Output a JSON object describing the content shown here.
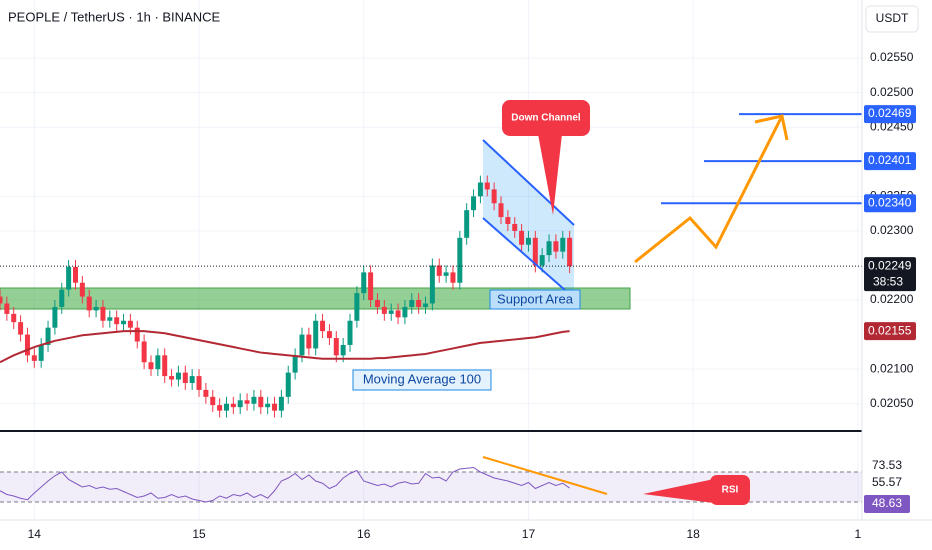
{
  "chart_data": {
    "type": "candlestick",
    "title": "PEOPLE / TetherUS · 1h · BINANCE",
    "currency": "USDT",
    "x": [
      0,
      1,
      2,
      3,
      4,
      5,
      6,
      7,
      8,
      9,
      10,
      11,
      12,
      13,
      14,
      15,
      16,
      17,
      18,
      19,
      20,
      21,
      22,
      23,
      24,
      25,
      26,
      27,
      28,
      29,
      30,
      31,
      32,
      33,
      34,
      35,
      36,
      37,
      38,
      39,
      40,
      41,
      42,
      43,
      44,
      45,
      46,
      47,
      48,
      49,
      50,
      51,
      52,
      53,
      54,
      55,
      56,
      57,
      58,
      59,
      60,
      61,
      62,
      63,
      64,
      65,
      66,
      67,
      68,
      69,
      70,
      71,
      72,
      73,
      74,
      75,
      76,
      77,
      78,
      79,
      80,
      81,
      82,
      83
    ],
    "open": [
      0.02205,
      0.02195,
      0.0218,
      0.02168,
      0.0215,
      0.0212,
      0.02112,
      0.02135,
      0.0216,
      0.0219,
      0.02215,
      0.02248,
      0.02225,
      0.02205,
      0.02185,
      0.0219,
      0.0217,
      0.02175,
      0.02165,
      0.0217,
      0.0216,
      0.0214,
      0.0211,
      0.021,
      0.0212,
      0.0209,
      0.02085,
      0.02095,
      0.0208,
      0.0209,
      0.0207,
      0.0206,
      0.02048,
      0.0204,
      0.0205,
      0.02045,
      0.02055,
      0.0205,
      0.0206,
      0.02045,
      0.0205,
      0.0204,
      0.0206,
      0.02095,
      0.0212,
      0.0215,
      0.0213,
      0.0217,
      0.02155,
      0.02145,
      0.0212,
      0.02135,
      0.0217,
      0.0221,
      0.0224,
      0.022,
      0.0219,
      0.0218,
      0.02185,
      0.02175,
      0.0219,
      0.022,
      0.0219,
      0.02195,
      0.0225,
      0.02235,
      0.0224,
      0.02225,
      0.0229,
      0.0233,
      0.0235,
      0.0237,
      0.0236,
      0.0234,
      0.0232,
      0.0231,
      0.023,
      0.0228,
      0.0229,
      0.0225,
      0.02265,
      0.02285,
      0.0227,
      0.0229
    ],
    "high": [
      0.02215,
      0.02205,
      0.0219,
      0.02178,
      0.0216,
      0.0213,
      0.02145,
      0.0217,
      0.022,
      0.02225,
      0.02258,
      0.02258,
      0.02235,
      0.02215,
      0.022,
      0.022,
      0.02185,
      0.02185,
      0.0218,
      0.0218,
      0.0217,
      0.0215,
      0.0212,
      0.0213,
      0.0213,
      0.021,
      0.02105,
      0.02105,
      0.021,
      0.021,
      0.0208,
      0.0207,
      0.02058,
      0.0206,
      0.0206,
      0.02065,
      0.02065,
      0.0207,
      0.0207,
      0.0206,
      0.0206,
      0.0207,
      0.02105,
      0.0213,
      0.0216,
      0.0216,
      0.0218,
      0.0218,
      0.02165,
      0.02155,
      0.02145,
      0.0218,
      0.0222,
      0.0225,
      0.0225,
      0.0221,
      0.022,
      0.02195,
      0.02195,
      0.022,
      0.0221,
      0.0221,
      0.02205,
      0.0226,
      0.0226,
      0.0225,
      0.0225,
      0.023,
      0.0234,
      0.0236,
      0.0238,
      0.0238,
      0.0237,
      0.0235,
      0.0233,
      0.0232,
      0.0231,
      0.023,
      0.023,
      0.02275,
      0.02295,
      0.02295,
      0.023,
      0.023
    ],
    "low": [
      0.02185,
      0.0217,
      0.02158,
      0.0214,
      0.0211,
      0.02102,
      0.02102,
      0.02125,
      0.0215,
      0.0218,
      0.02205,
      0.02215,
      0.02195,
      0.02175,
      0.02175,
      0.0216,
      0.0216,
      0.02155,
      0.02155,
      0.0215,
      0.0213,
      0.021,
      0.0209,
      0.0209,
      0.0208,
      0.02075,
      0.02075,
      0.0207,
      0.0207,
      0.0206,
      0.0205,
      0.02038,
      0.0203,
      0.0203,
      0.02035,
      0.02035,
      0.0204,
      0.0204,
      0.02035,
      0.02035,
      0.0203,
      0.0203,
      0.0205,
      0.02085,
      0.0211,
      0.0212,
      0.0212,
      0.02145,
      0.02135,
      0.0211,
      0.0211,
      0.02125,
      0.0216,
      0.022,
      0.0219,
      0.0218,
      0.0217,
      0.0217,
      0.02165,
      0.02165,
      0.0218,
      0.0218,
      0.0218,
      0.02185,
      0.02225,
      0.02225,
      0.02215,
      0.02215,
      0.0228,
      0.0232,
      0.0234,
      0.0235,
      0.0233,
      0.0231,
      0.023,
      0.0229,
      0.0227,
      0.0227,
      0.0224,
      0.0224,
      0.02255,
      0.0226,
      0.0226,
      0.02239
    ],
    "close": [
      0.02195,
      0.0218,
      0.02168,
      0.0215,
      0.0212,
      0.02112,
      0.02135,
      0.0216,
      0.0219,
      0.02215,
      0.02248,
      0.02225,
      0.02205,
      0.02185,
      0.0219,
      0.0217,
      0.02175,
      0.02165,
      0.0217,
      0.0216,
      0.0214,
      0.0211,
      0.021,
      0.0212,
      0.0209,
      0.02085,
      0.02095,
      0.0208,
      0.0209,
      0.0207,
      0.0206,
      0.02048,
      0.0204,
      0.0205,
      0.02045,
      0.02055,
      0.0205,
      0.0206,
      0.02045,
      0.0205,
      0.0204,
      0.0206,
      0.02095,
      0.0212,
      0.0215,
      0.0213,
      0.0217,
      0.02155,
      0.02145,
      0.0212,
      0.02135,
      0.0217,
      0.0221,
      0.0224,
      0.022,
      0.0219,
      0.0218,
      0.02185,
      0.02175,
      0.0219,
      0.022,
      0.0219,
      0.02195,
      0.0225,
      0.02235,
      0.0224,
      0.02225,
      0.0229,
      0.0233,
      0.0235,
      0.0237,
      0.0236,
      0.0234,
      0.0232,
      0.0231,
      0.023,
      0.0228,
      0.0229,
      0.0225,
      0.02265,
      0.02285,
      0.0227,
      0.0229,
      0.02249
    ],
    "up_color": "#089981",
    "down_color": "#f23645",
    "moving_average": {
      "name": "Moving Average 100",
      "color": "#b22833",
      "values": [
        0.0211,
        0.02115,
        0.0212,
        0.02124,
        0.02128,
        0.02132,
        0.02135,
        0.02138,
        0.02141,
        0.02143,
        0.02145,
        0.02147,
        0.02149,
        0.0215,
        0.02151,
        0.02152,
        0.02153,
        0.02154,
        0.02155,
        0.02155,
        0.02155,
        0.02155,
        0.02154,
        0.02153,
        0.02152,
        0.0215,
        0.02148,
        0.02146,
        0.02144,
        0.02142,
        0.0214,
        0.02138,
        0.02136,
        0.02134,
        0.02132,
        0.0213,
        0.02128,
        0.02126,
        0.02124,
        0.02123,
        0.02122,
        0.02121,
        0.0212,
        0.02119,
        0.02118,
        0.02117,
        0.02116,
        0.02115,
        0.02115,
        0.02115,
        0.02115,
        0.02115,
        0.02115,
        0.02115,
        0.02115,
        0.02116,
        0.02116,
        0.02117,
        0.02118,
        0.02119,
        0.0212,
        0.02121,
        0.02122,
        0.02124,
        0.02126,
        0.02128,
        0.0213,
        0.02132,
        0.02134,
        0.02136,
        0.02138,
        0.02139,
        0.0214,
        0.02141,
        0.02142,
        0.02143,
        0.02144,
        0.02145,
        0.02146,
        0.02148,
        0.0215,
        0.02152,
        0.02154,
        0.02155
      ],
      "last": 0.02155
    },
    "ylim": [
      0.02012,
      0.02634
    ],
    "yticks": [
      {
        "value": 0.0205,
        "label": "0.02050"
      },
      {
        "value": 0.021,
        "label": "0.02100"
      },
      {
        "value": 0.022,
        "label": "0.02200"
      },
      {
        "value": 0.023,
        "label": "0.02300"
      },
      {
        "value": 0.0235,
        "label": "0.02350"
      },
      {
        "value": 0.0245,
        "label": "0.02450"
      },
      {
        "value": 0.025,
        "label": "0.02500"
      },
      {
        "value": 0.0255,
        "label": "0.02550"
      }
    ],
    "xlim": [
      0,
      125.6
    ],
    "xticks": [
      {
        "value": 5,
        "label": "14"
      },
      {
        "value": 29,
        "label": "15"
      },
      {
        "value": 53,
        "label": "16"
      },
      {
        "value": 77,
        "label": "17"
      },
      {
        "value": 101,
        "label": "18"
      },
      {
        "value": 125,
        "label": "1"
      }
    ],
    "target_levels": [
      0.02469,
      0.02401,
      {
        "value": 0.0234,
        "label": "0.02340"
      }
    ],
    "level_color": "#2962ff",
    "last_price": 0.02249,
    "countdown": "38:53",
    "annotations": {
      "channel": "Down Channel",
      "support": "Support Area",
      "ma": "Moving Average 100",
      "rsi": "RSI"
    },
    "rsi": {
      "color": "#7e57c2",
      "ylim": [
        0,
        100
      ],
      "bands": [
        70,
        30
      ],
      "values": [
        45,
        40,
        38,
        35,
        33,
        42,
        50,
        58,
        65,
        70,
        60,
        55,
        50,
        52,
        48,
        50,
        47,
        48,
        44,
        40,
        36,
        38,
        42,
        35,
        36,
        40,
        36,
        38,
        34,
        32,
        30,
        32,
        38,
        35,
        40,
        38,
        42,
        36,
        40,
        35,
        45,
        58,
        62,
        68,
        60,
        66,
        58,
        55,
        48,
        52,
        62,
        68,
        72,
        58,
        55,
        52,
        54,
        50,
        55,
        57,
        54,
        55,
        68,
        62,
        63,
        58,
        70,
        74,
        75,
        76,
        70,
        66,
        62,
        60,
        58,
        55,
        52,
        56,
        48,
        52,
        56,
        52,
        55,
        48.63
      ],
      "labels": [
        73.53,
        55.57,
        48.63
      ]
    }
  }
}
